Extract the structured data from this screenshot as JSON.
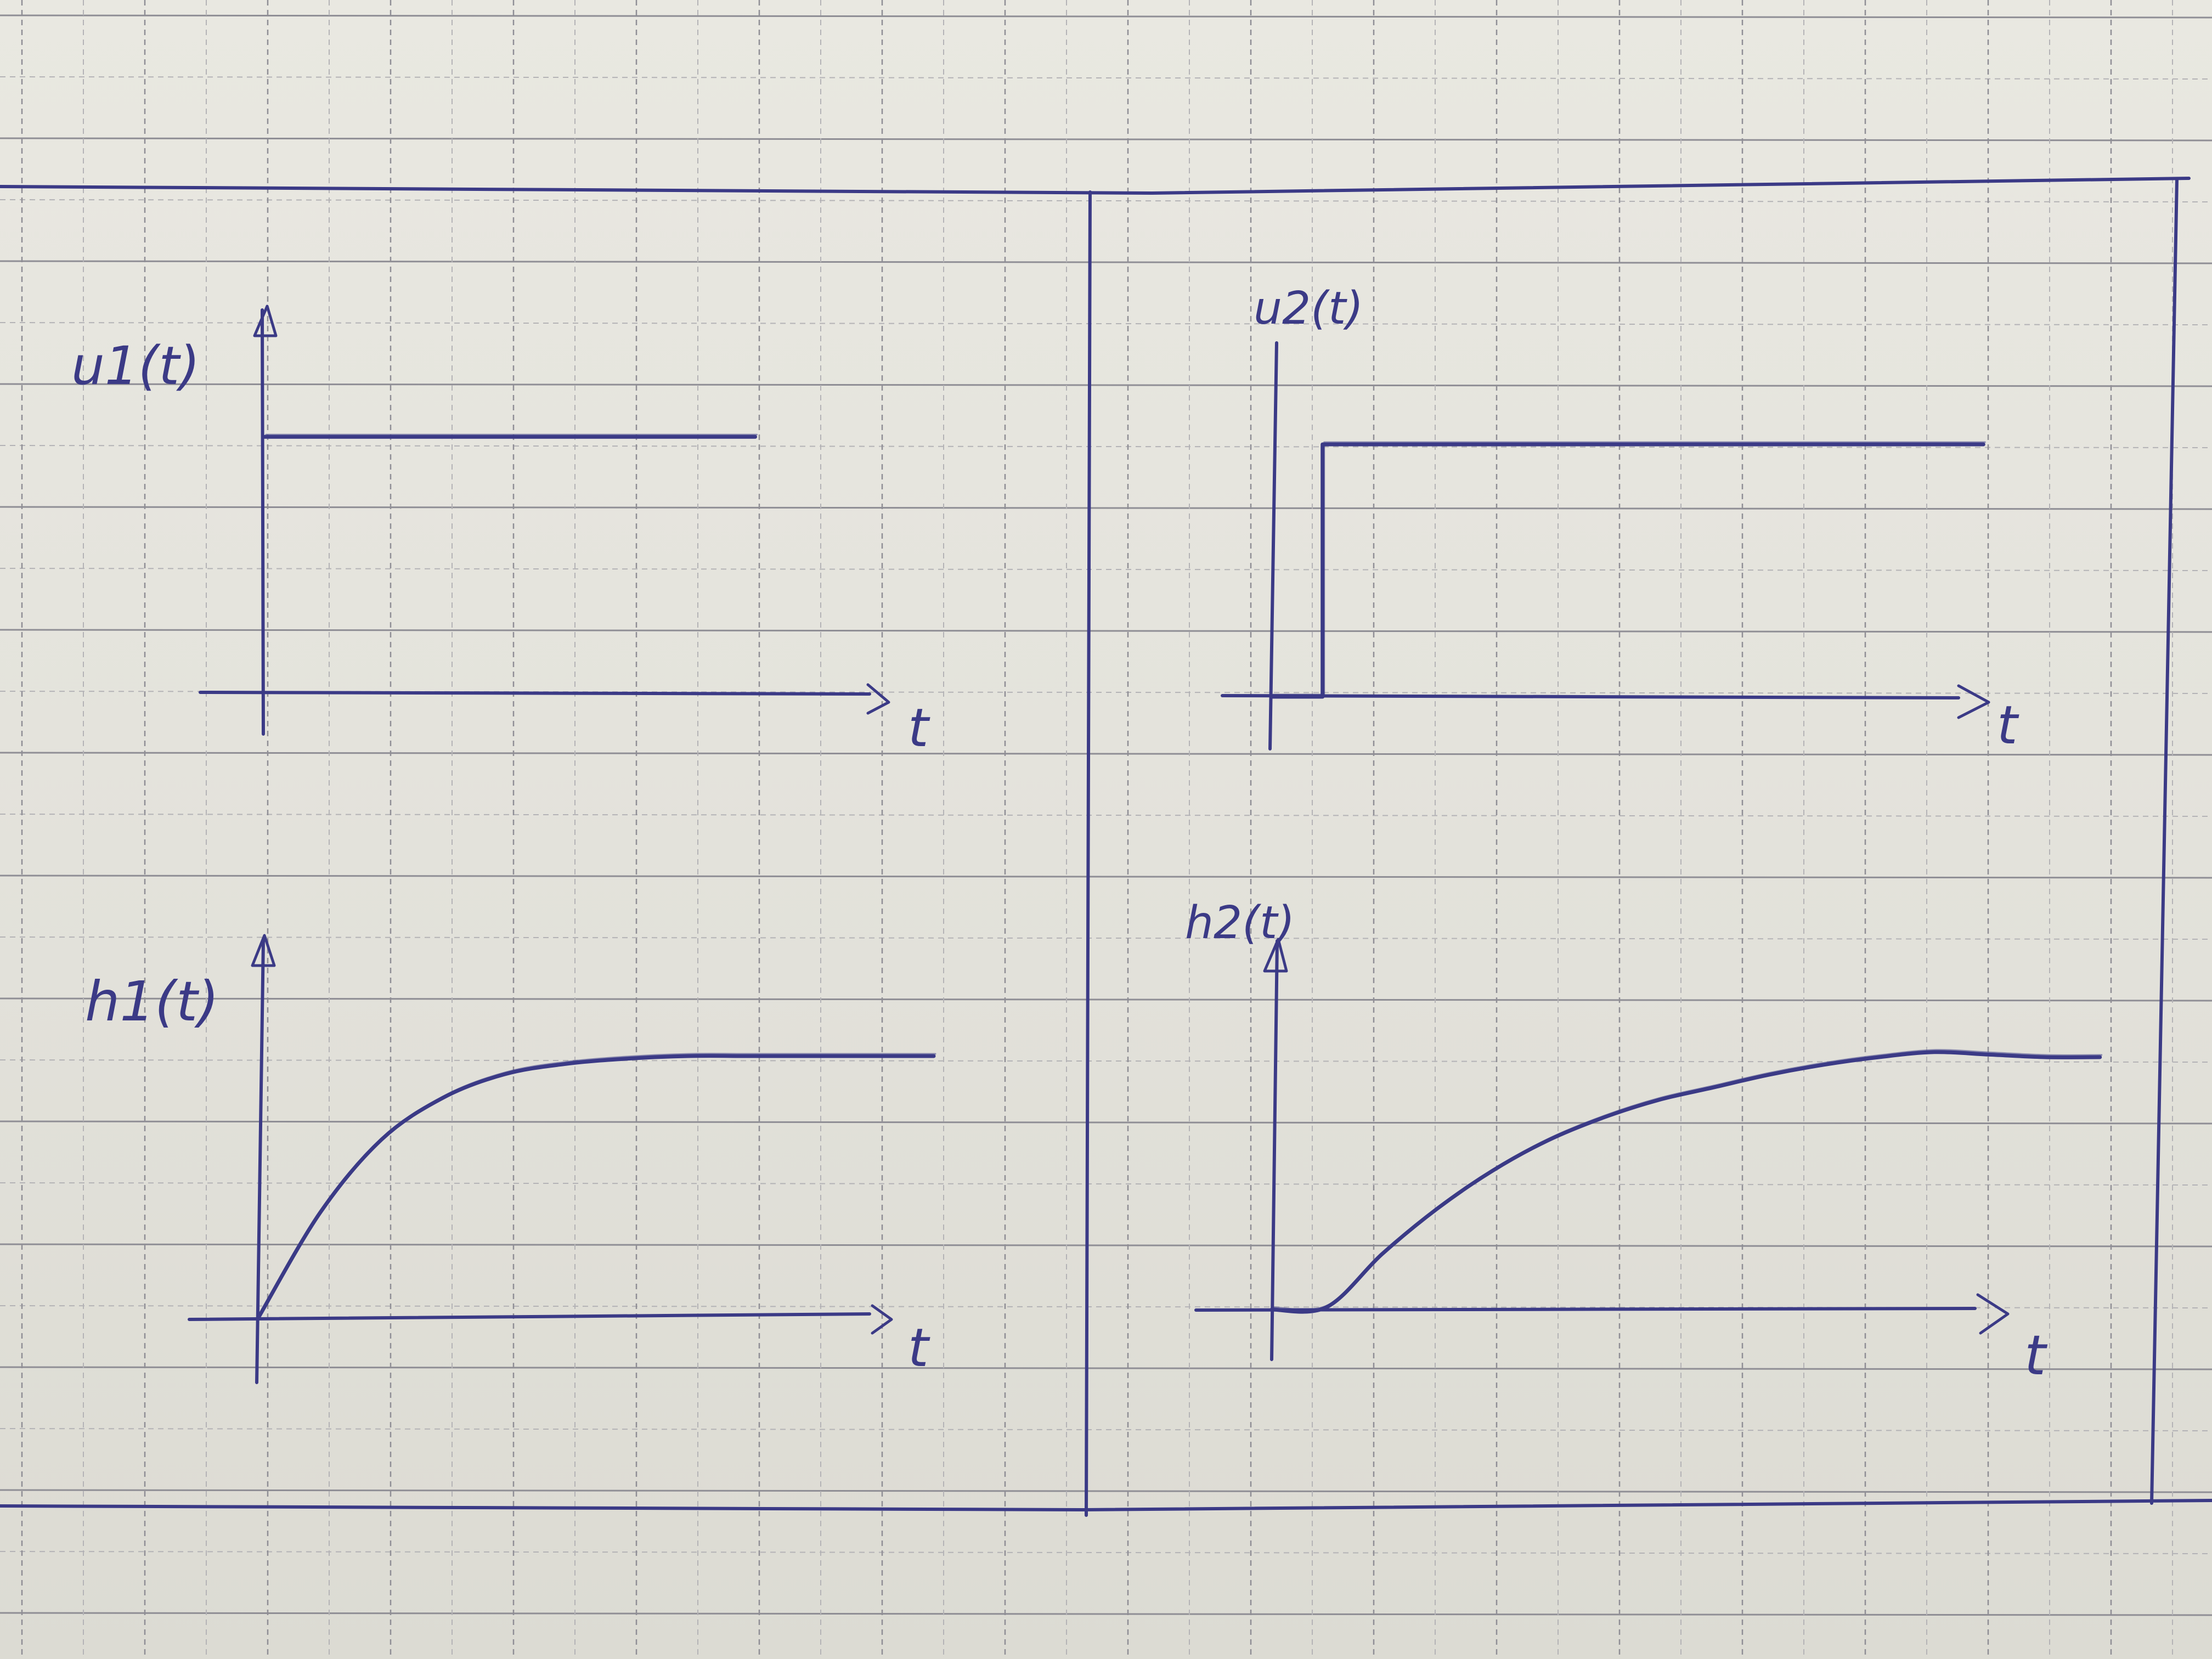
{
  "colors": {
    "ink": "#3b3a86",
    "grid_major": "#8f8e95",
    "grid_minor": "#b4b3b6",
    "paper": "#e6e5de"
  },
  "chart_data": [
    {
      "type": "line",
      "panel": "top-left",
      "ylabel": "u1(t)",
      "xlabel": "t",
      "x": [
        0,
        1,
        2,
        3,
        4,
        5,
        6,
        7,
        8
      ],
      "series": [
        {
          "values": [
            1,
            1,
            1,
            1,
            1,
            1,
            1,
            1,
            1
          ]
        }
      ],
      "xlim": [
        0,
        11
      ],
      "ylim": [
        0,
        1.2
      ],
      "grid": true,
      "legend": "none"
    },
    {
      "type": "line",
      "panel": "top-right",
      "ylabel": "u2(t)",
      "xlabel": "t",
      "x": [
        0,
        1,
        1,
        2,
        4,
        6,
        8,
        10,
        12,
        14
      ],
      "series": [
        {
          "values": [
            0,
            0,
            1,
            1,
            1,
            1,
            1,
            1,
            1,
            1
          ]
        }
      ],
      "xlim": [
        0,
        15
      ],
      "ylim": [
        0,
        1.2
      ],
      "grid": true,
      "legend": "none"
    },
    {
      "type": "line",
      "panel": "bottom-left",
      "ylabel": "h1(t)",
      "xlabel": "t",
      "x": [
        0,
        1,
        2,
        3,
        4,
        5,
        6,
        7,
        8,
        9,
        10,
        11
      ],
      "series": [
        {
          "values": [
            0,
            0.4,
            0.68,
            0.84,
            0.93,
            0.97,
            0.99,
            1,
            1,
            1,
            1,
            1
          ]
        }
      ],
      "xlim": [
        0,
        11
      ],
      "ylim": [
        0,
        1.2
      ],
      "grid": true,
      "legend": "none"
    },
    {
      "type": "line",
      "panel": "bottom-right",
      "ylabel": "h2(t)",
      "xlabel": "t",
      "x": [
        0,
        1,
        2,
        3,
        4,
        5,
        6,
        7,
        8,
        9,
        10,
        11,
        12,
        13,
        14,
        15
      ],
      "series": [
        {
          "values": [
            0,
            0.01,
            0.22,
            0.4,
            0.55,
            0.67,
            0.76,
            0.83,
            0.88,
            0.93,
            0.97,
            1,
            1.02,
            1.01,
            1,
            1
          ]
        }
      ],
      "xlim": [
        0,
        15.5
      ],
      "ylim": [
        0,
        1.2
      ],
      "grid": true,
      "legend": "none"
    }
  ]
}
